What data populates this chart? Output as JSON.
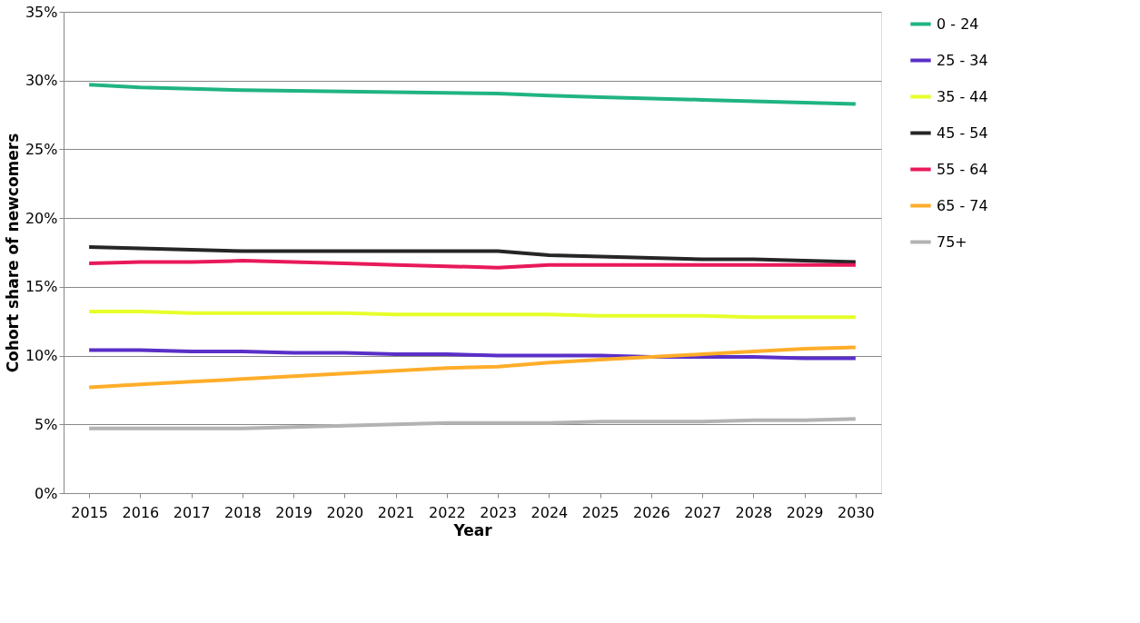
{
  "chart_data": {
    "type": "line",
    "xlabel": "Year",
    "ylabel": "Cohort share of newcomers",
    "categories": [
      "2015",
      "2016",
      "2017",
      "2018",
      "2019",
      "2020",
      "2021",
      "2022",
      "2023",
      "2024",
      "2025",
      "2026",
      "2027",
      "2028",
      "2029",
      "2030"
    ],
    "series": [
      {
        "name": "0 - 24",
        "color": "#20b482",
        "values": [
          29.7,
          29.5,
          29.4,
          29.3,
          29.25,
          29.2,
          29.15,
          29.1,
          29.05,
          28.9,
          28.8,
          28.7,
          28.6,
          28.5,
          28.4,
          28.3
        ]
      },
      {
        "name": "25 - 34",
        "color": "#5a2fc8",
        "values": [
          10.4,
          10.4,
          10.3,
          10.3,
          10.2,
          10.2,
          10.1,
          10.1,
          10.0,
          10.0,
          10.0,
          9.9,
          9.9,
          9.9,
          9.8,
          9.8
        ]
      },
      {
        "name": "35 - 44",
        "color": "#e6ff2a",
        "values": [
          13.2,
          13.2,
          13.1,
          13.1,
          13.1,
          13.1,
          13.0,
          13.0,
          13.0,
          13.0,
          12.9,
          12.9,
          12.9,
          12.8,
          12.8,
          12.8
        ]
      },
      {
        "name": "45 - 54",
        "color": "#262626",
        "values": [
          17.9,
          17.8,
          17.7,
          17.6,
          17.6,
          17.6,
          17.6,
          17.6,
          17.6,
          17.3,
          17.2,
          17.1,
          17.0,
          17.0,
          16.9,
          16.8
        ]
      },
      {
        "name": "55 - 64",
        "color": "#e8195a",
        "values": [
          16.7,
          16.8,
          16.8,
          16.9,
          16.8,
          16.7,
          16.6,
          16.5,
          16.4,
          16.6,
          16.6,
          16.6,
          16.6,
          16.6,
          16.6,
          16.6
        ]
      },
      {
        "name": "65 - 74",
        "color": "#ffad2a",
        "values": [
          7.7,
          7.9,
          8.1,
          8.3,
          8.5,
          8.7,
          8.9,
          9.1,
          9.2,
          9.5,
          9.7,
          9.9,
          10.1,
          10.3,
          10.5,
          10.6
        ]
      },
      {
        "name": "75+",
        "color": "#b3b3b3",
        "values": [
          4.7,
          4.7,
          4.7,
          4.7,
          4.8,
          4.9,
          5.0,
          5.1,
          5.1,
          5.1,
          5.2,
          5.2,
          5.2,
          5.3,
          5.3,
          5.4
        ]
      }
    ],
    "ylim": [
      0,
      35
    ],
    "yticks": [
      {
        "value": 0,
        "label": "0%"
      },
      {
        "value": 5,
        "label": "5%"
      },
      {
        "value": 10,
        "label": "10%"
      },
      {
        "value": 15,
        "label": "15%"
      },
      {
        "value": 20,
        "label": "20%"
      },
      {
        "value": 25,
        "label": "25%"
      },
      {
        "value": 30,
        "label": "30%"
      },
      {
        "value": 35,
        "label": "35%"
      }
    ],
    "grid": "y",
    "legend": "right",
    "marker": "none",
    "line_style": "solid"
  }
}
